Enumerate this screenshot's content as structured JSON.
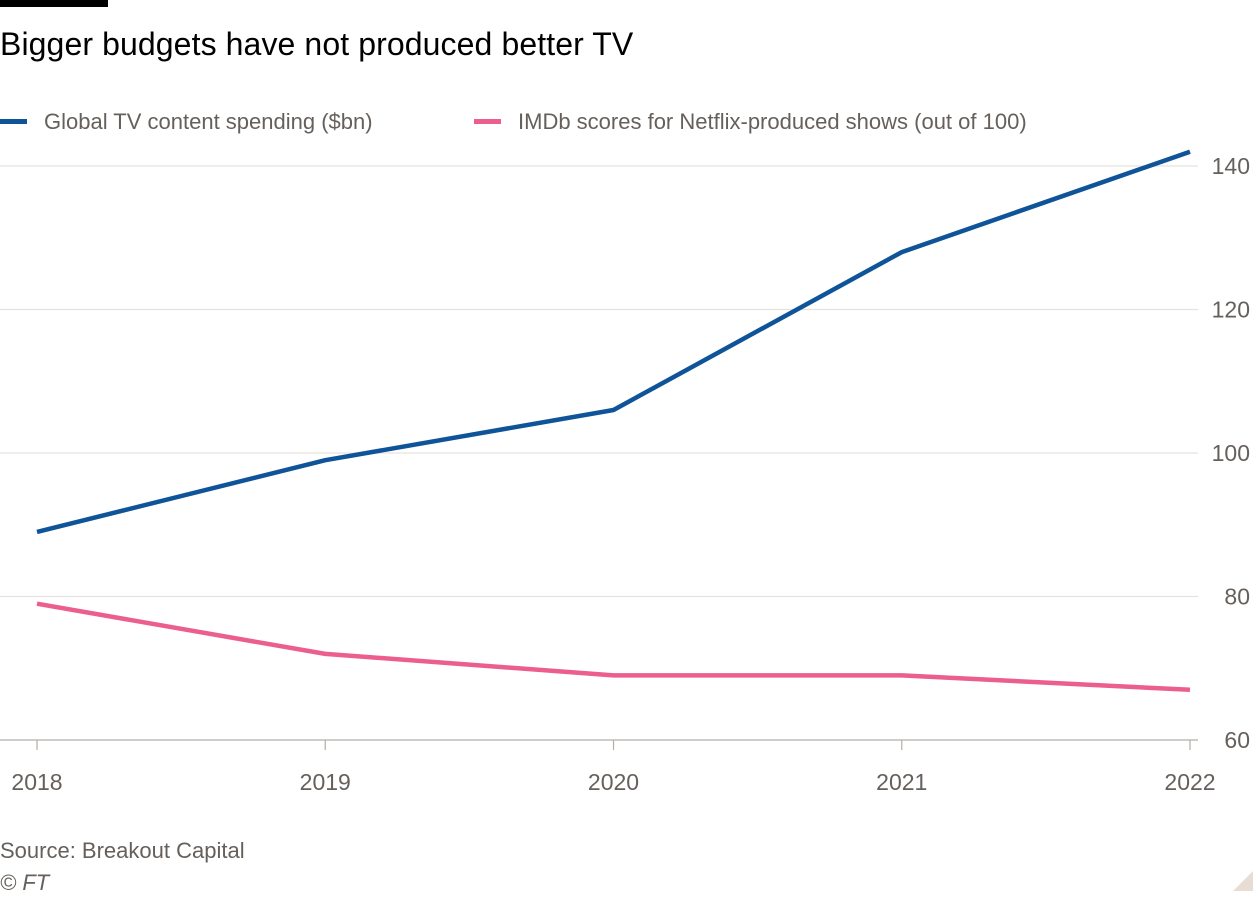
{
  "header": {
    "title": "Bigger budgets have not produced better TV"
  },
  "footer": {
    "source": "Source: Breakout Capital",
    "copyright": "© FT"
  },
  "colors": {
    "spending": "#0f5499",
    "imdb": "#eb5e8d",
    "grid": "#e6e3df",
    "axis": "#b3aea9"
  },
  "chart_data": {
    "type": "line",
    "title": "Bigger budgets have not produced better TV",
    "xlabel": "",
    "ylabel": "",
    "x": [
      "2018",
      "2019",
      "2020",
      "2021",
      "2022"
    ],
    "ylim": [
      60,
      140
    ],
    "yticks": [
      60,
      80,
      100,
      120,
      140
    ],
    "y_axis_side": "right",
    "grid": true,
    "legend": "top-left",
    "series": [
      {
        "name": "Global TV content spending ($bn)",
        "color": "#0f5499",
        "values": [
          89,
          99,
          106,
          128,
          142
        ]
      },
      {
        "name": "IMDb scores for Netflix-produced shows (out of 100)",
        "color": "#eb5e8d",
        "values": [
          79,
          72,
          69,
          69,
          67
        ]
      }
    ]
  }
}
